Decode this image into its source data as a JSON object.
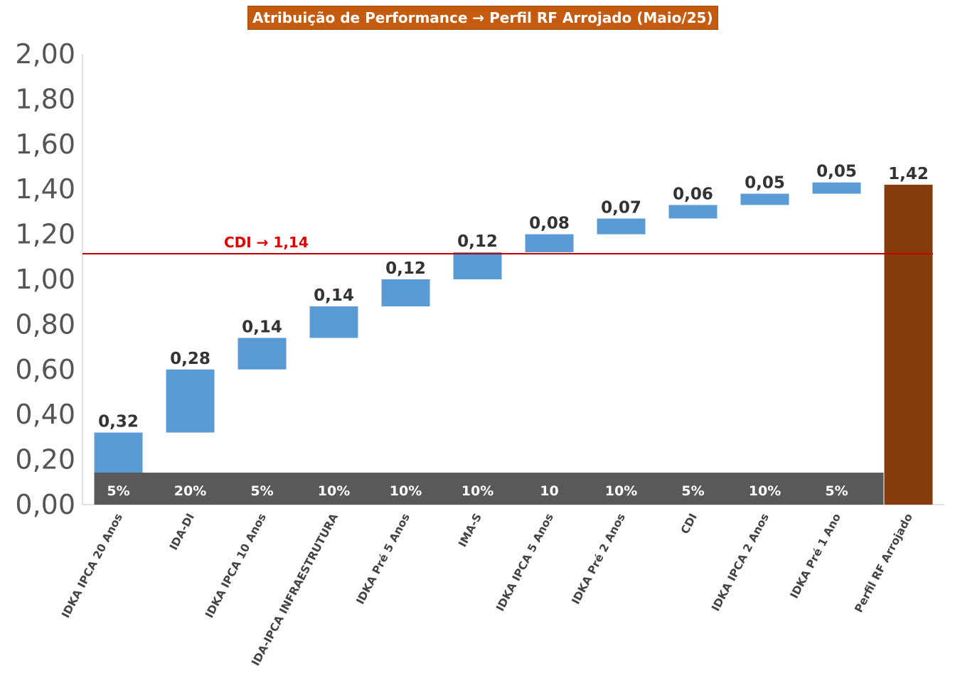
{
  "chart_data": {
    "type": "bar",
    "subtype": "waterfall",
    "title": "Atribuição de Performance → Perfil RF Arrojado (Maio/25)",
    "categories": [
      "IDKA IPCA 20 Anos",
      "IDA-DI",
      "IDKA IPCA 10 Anos",
      "IDA-IPCA INFRAESTRUTURA",
      "IDKA Pré 5 Anos",
      "IMA-S",
      "IDKA IPCA 5 Anos",
      "IDKA Pré 2 Anos",
      "CDI",
      "IDKA IPCA 2 Anos",
      "IDKA Pré 1 Ano",
      "Perfil RF Arrojado"
    ],
    "values": [
      0.32,
      0.28,
      0.14,
      0.14,
      0.12,
      0.12,
      0.08,
      0.07,
      0.06,
      0.05,
      0.05,
      1.42
    ],
    "value_labels": [
      "0,32",
      "0,28",
      "0,14",
      "0,14",
      "0,12",
      "0,12",
      "0,08",
      "0,07",
      "0,06",
      "0,05",
      "0,05",
      "1,42"
    ],
    "weights": [
      "5%",
      "20%",
      "5%",
      "10%",
      "10%",
      "10%",
      "10",
      "10%",
      "5%",
      "10%",
      "5%"
    ],
    "total_index": 11,
    "ylim": [
      0,
      2
    ],
    "yticks": [
      "0,00",
      "0,20",
      "0,40",
      "0,60",
      "0,80",
      "1,00",
      "1,20",
      "1,40",
      "1,60",
      "1,80",
      "2,00"
    ],
    "reference_line": {
      "label": "CDI → 1,14",
      "value": 1.14
    },
    "colors": {
      "step": "#5b9bd5",
      "total": "#843c0c",
      "weight_band": "#595959",
      "reference": "#c00000",
      "title_bg": "#c55a11"
    },
    "grid": false
  }
}
